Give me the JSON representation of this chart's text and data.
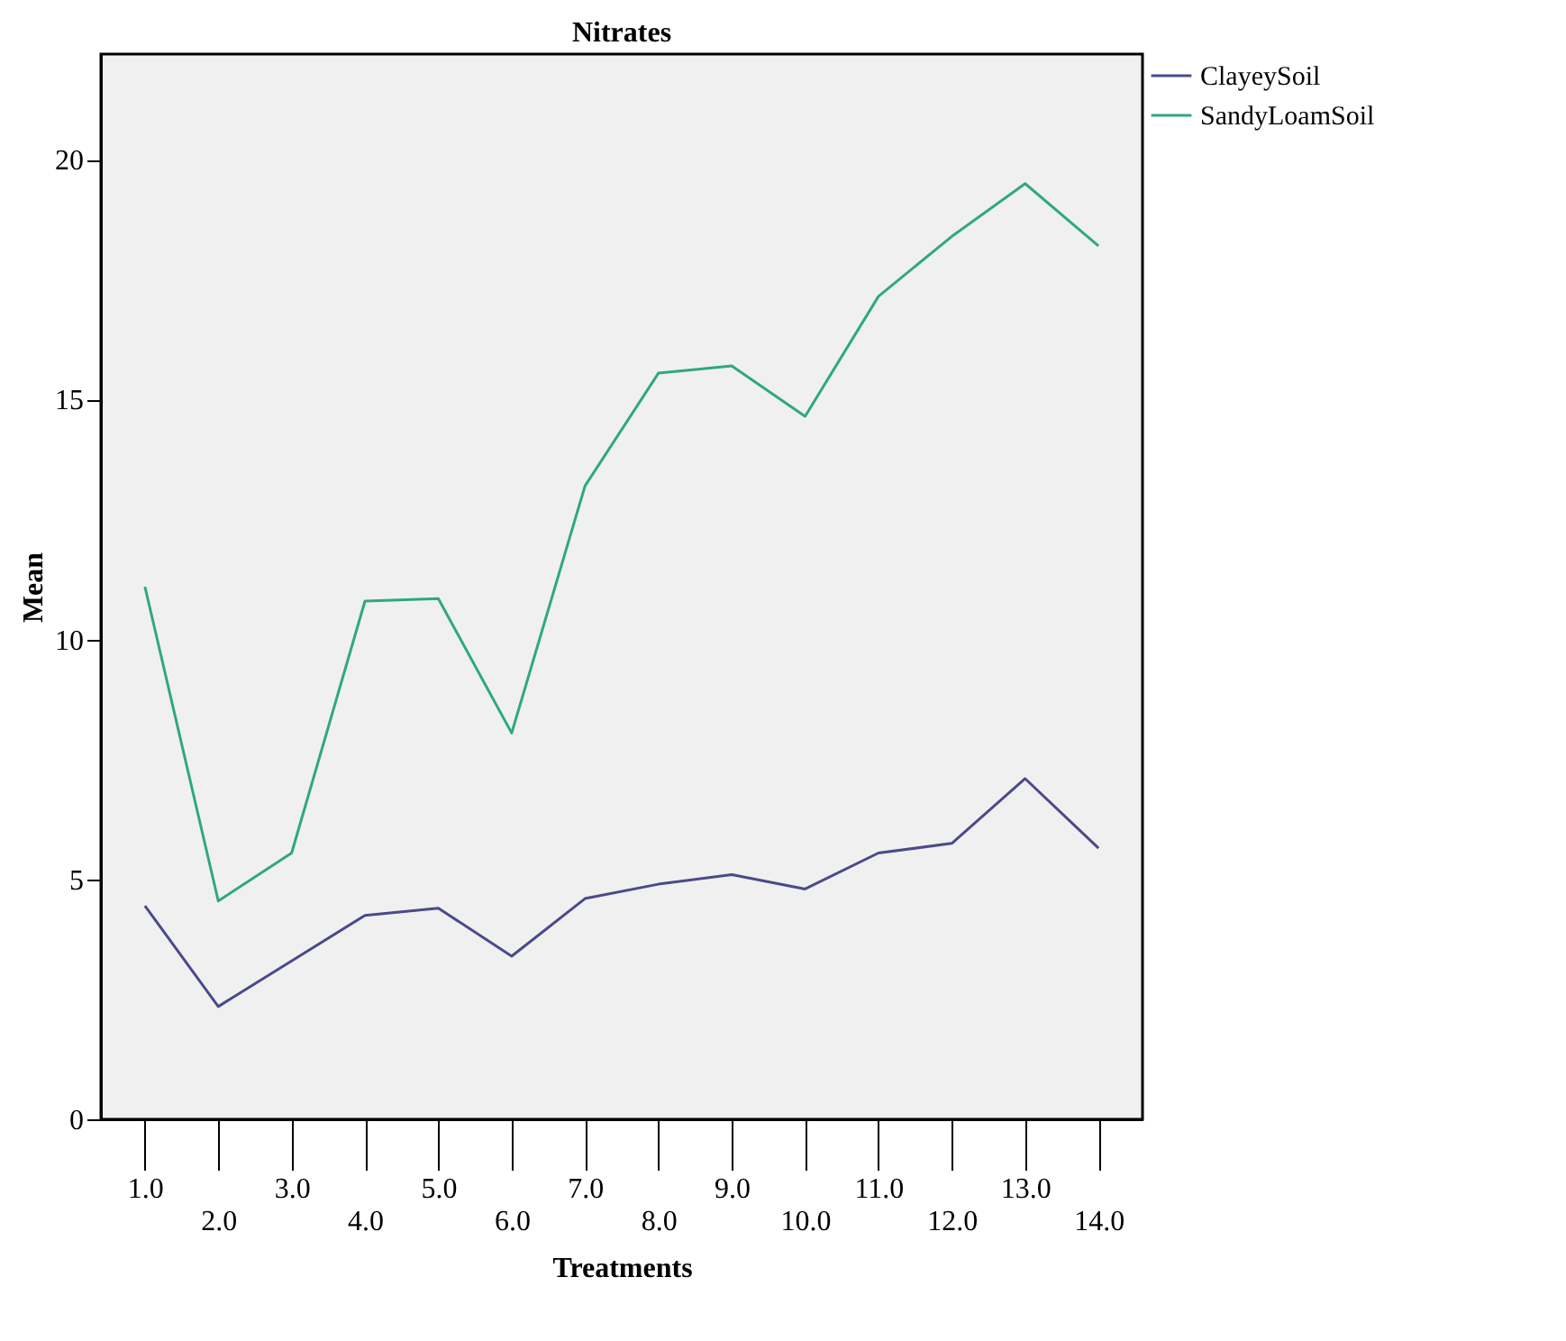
{
  "chart_data": {
    "type": "line",
    "title": "Nitrates",
    "xlabel": "Treatments",
    "ylabel": "Mean",
    "categories": [
      "1.0",
      "2.0",
      "3.0",
      "4.0",
      "5.0",
      "6.0",
      "7.0",
      "8.0",
      "9.0",
      "10.0",
      "11.0",
      "12.0",
      "13.0",
      "14.0"
    ],
    "series": [
      {
        "name": "ClayeySoil",
        "color": "#4a4a8a",
        "values": [
          4.45,
          2.35,
          3.3,
          4.25,
          4.4,
          3.4,
          4.6,
          4.9,
          5.1,
          4.8,
          5.55,
          5.75,
          7.1,
          5.65
        ]
      },
      {
        "name": "SandyLoamSoil",
        "color": "#2ea882",
        "values": [
          11.1,
          4.55,
          5.55,
          10.8,
          10.85,
          8.05,
          13.2,
          15.55,
          15.7,
          14.65,
          17.15,
          18.4,
          19.5,
          18.2
        ]
      }
    ],
    "ylim": [
      0,
      22.2
    ],
    "yticks": [
      0,
      5,
      10,
      15,
      20
    ],
    "grid": false,
    "legend": "top right",
    "marker": "none",
    "line_style": "solid"
  }
}
